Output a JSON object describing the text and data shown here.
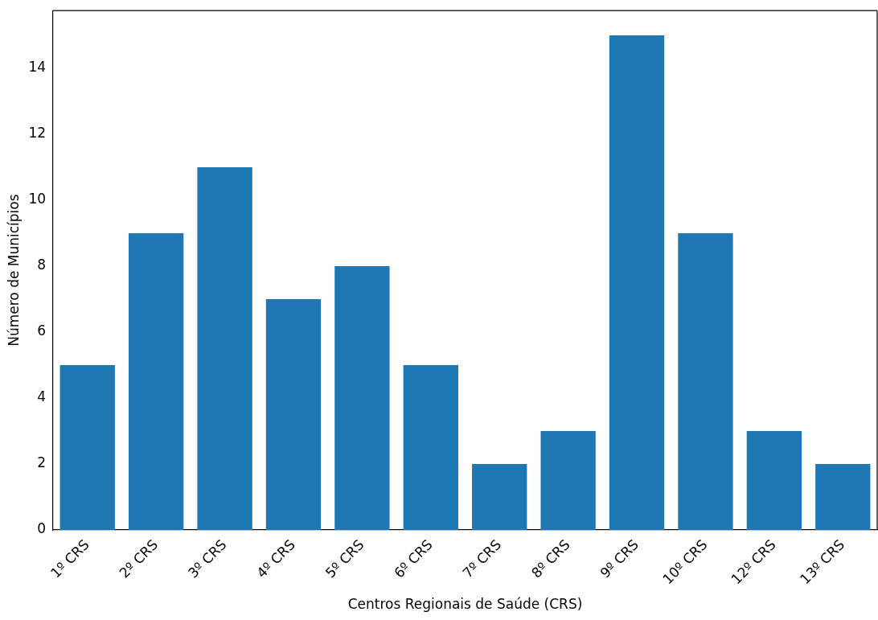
{
  "chart_data": {
    "type": "bar",
    "xlabel": "Centros Regionais de Saúde (CRS)",
    "ylabel": "Número de Municípios",
    "categories": [
      "1º CRS",
      "2º CRS",
      "3º CRS",
      "4º CRS",
      "5º CRS",
      "6º CRS",
      "7º CRS",
      "8º CRS",
      "9º CRS",
      "10º CRS",
      "12º CRS",
      "13º CRS"
    ],
    "values": [
      5,
      9,
      11,
      7,
      8,
      5,
      2,
      3,
      15,
      9,
      3,
      2
    ],
    "color": "#1f77b4",
    "ylim": [
      0,
      15.75
    ],
    "yticks": [
      0,
      2,
      4,
      6,
      8,
      10,
      12,
      14
    ],
    "grid": false,
    "legend": false
  }
}
